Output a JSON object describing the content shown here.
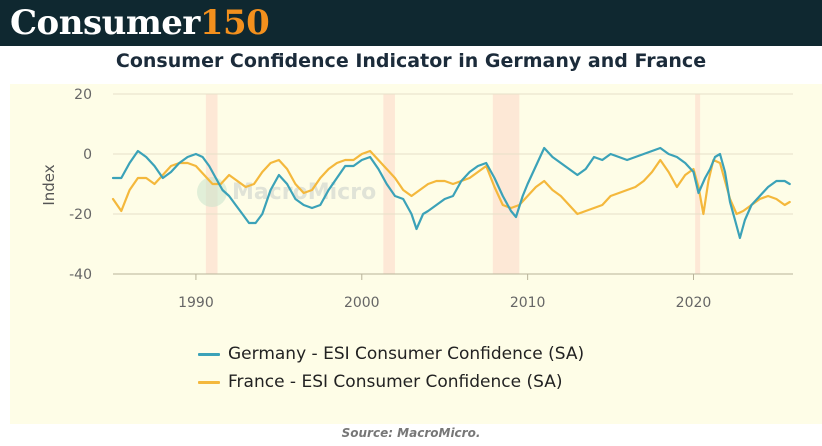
{
  "header": {
    "brand_word": "Consumer",
    "brand_number": "150"
  },
  "source_text": "Source: MacroMicro.",
  "watermark": "MacroMicro",
  "chart_data": {
    "type": "line",
    "title": "Consumer Confidence Indicator in Germany and France",
    "xlabel": "",
    "ylabel": "Index",
    "xlim": [
      1985,
      2026
    ],
    "ylim": [
      -40,
      20
    ],
    "x_ticks": [
      1990,
      2000,
      2010,
      2020
    ],
    "y_ticks": [
      -40,
      -20,
      0,
      20
    ],
    "recessions": [
      [
        1990.6,
        1991.3
      ],
      [
        2001.3,
        2002.0
      ],
      [
        2007.9,
        2009.5
      ],
      [
        2020.1,
        2020.4
      ]
    ],
    "legend_position": "bottom-center",
    "series": [
      {
        "name": "Germany - ESI Consumer Confidence (SA)",
        "color": "#3ba2b8",
        "points": [
          [
            1985.0,
            -8
          ],
          [
            1985.5,
            -8
          ],
          [
            1986.0,
            -3
          ],
          [
            1986.5,
            1
          ],
          [
            1987.0,
            -1
          ],
          [
            1987.5,
            -4
          ],
          [
            1988.0,
            -8
          ],
          [
            1988.5,
            -6
          ],
          [
            1989.0,
            -3
          ],
          [
            1989.5,
            -1
          ],
          [
            1990.0,
            0
          ],
          [
            1990.4,
            -1
          ],
          [
            1990.8,
            -4
          ],
          [
            1991.2,
            -8
          ],
          [
            1991.6,
            -12
          ],
          [
            1992.0,
            -14
          ],
          [
            1992.4,
            -17
          ],
          [
            1992.8,
            -20
          ],
          [
            1993.2,
            -23
          ],
          [
            1993.6,
            -23
          ],
          [
            1994.0,
            -20
          ],
          [
            1994.5,
            -12
          ],
          [
            1995.0,
            -7
          ],
          [
            1995.5,
            -10
          ],
          [
            1996.0,
            -15
          ],
          [
            1996.5,
            -17
          ],
          [
            1997.0,
            -18
          ],
          [
            1997.5,
            -17
          ],
          [
            1998.0,
            -12
          ],
          [
            1998.5,
            -8
          ],
          [
            1999.0,
            -4
          ],
          [
            1999.5,
            -4
          ],
          [
            2000.0,
            -2
          ],
          [
            2000.5,
            -1
          ],
          [
            2001.0,
            -5
          ],
          [
            2001.5,
            -10
          ],
          [
            2002.0,
            -14
          ],
          [
            2002.5,
            -15
          ],
          [
            2003.0,
            -20
          ],
          [
            2003.3,
            -25
          ],
          [
            2003.7,
            -20
          ],
          [
            2004.0,
            -19
          ],
          [
            2004.5,
            -17
          ],
          [
            2005.0,
            -15
          ],
          [
            2005.5,
            -14
          ],
          [
            2006.0,
            -9
          ],
          [
            2006.5,
            -6
          ],
          [
            2007.0,
            -4
          ],
          [
            2007.5,
            -3
          ],
          [
            2008.0,
            -8
          ],
          [
            2008.5,
            -14
          ],
          [
            2009.0,
            -19
          ],
          [
            2009.3,
            -21
          ],
          [
            2009.7,
            -14
          ],
          [
            2010.0,
            -10
          ],
          [
            2010.5,
            -4
          ],
          [
            2011.0,
            2
          ],
          [
            2011.5,
            -1
          ],
          [
            2012.0,
            -3
          ],
          [
            2012.5,
            -5
          ],
          [
            2013.0,
            -7
          ],
          [
            2013.5,
            -5
          ],
          [
            2014.0,
            -1
          ],
          [
            2014.5,
            -2
          ],
          [
            2015.0,
            0
          ],
          [
            2015.5,
            -1
          ],
          [
            2016.0,
            -2
          ],
          [
            2016.5,
            -1
          ],
          [
            2017.0,
            0
          ],
          [
            2017.5,
            1
          ],
          [
            2018.0,
            2
          ],
          [
            2018.5,
            0
          ],
          [
            2019.0,
            -1
          ],
          [
            2019.5,
            -3
          ],
          [
            2020.0,
            -6
          ],
          [
            2020.3,
            -13
          ],
          [
            2020.7,
            -8
          ],
          [
            2021.0,
            -5
          ],
          [
            2021.3,
            -1
          ],
          [
            2021.6,
            0
          ],
          [
            2021.9,
            -6
          ],
          [
            2022.2,
            -16
          ],
          [
            2022.5,
            -22
          ],
          [
            2022.8,
            -28
          ],
          [
            2023.1,
            -22
          ],
          [
            2023.5,
            -17
          ],
          [
            2024.0,
            -14
          ],
          [
            2024.5,
            -11
          ],
          [
            2025.0,
            -9
          ],
          [
            2025.5,
            -9
          ],
          [
            2025.8,
            -10
          ]
        ]
      },
      {
        "name": "France - ESI Consumer Confidence (SA)",
        "color": "#f4b83c",
        "points": [
          [
            1985.0,
            -15
          ],
          [
            1985.5,
            -19
          ],
          [
            1986.0,
            -12
          ],
          [
            1986.5,
            -8
          ],
          [
            1987.0,
            -8
          ],
          [
            1987.5,
            -10
          ],
          [
            1988.0,
            -7
          ],
          [
            1988.5,
            -4
          ],
          [
            1989.0,
            -3
          ],
          [
            1989.5,
            -3
          ],
          [
            1990.0,
            -4
          ],
          [
            1990.5,
            -7
          ],
          [
            1991.0,
            -10
          ],
          [
            1991.5,
            -10
          ],
          [
            1992.0,
            -7
          ],
          [
            1992.5,
            -9
          ],
          [
            1993.0,
            -11
          ],
          [
            1993.5,
            -10
          ],
          [
            1994.0,
            -6
          ],
          [
            1994.5,
            -3
          ],
          [
            1995.0,
            -2
          ],
          [
            1995.5,
            -5
          ],
          [
            1996.0,
            -10
          ],
          [
            1996.5,
            -13
          ],
          [
            1997.0,
            -12
          ],
          [
            1997.5,
            -8
          ],
          [
            1998.0,
            -5
          ],
          [
            1998.5,
            -3
          ],
          [
            1999.0,
            -2
          ],
          [
            1999.5,
            -2
          ],
          [
            2000.0,
            0
          ],
          [
            2000.5,
            1
          ],
          [
            2001.0,
            -2
          ],
          [
            2001.5,
            -5
          ],
          [
            2002.0,
            -8
          ],
          [
            2002.5,
            -12
          ],
          [
            2003.0,
            -14
          ],
          [
            2003.5,
            -12
          ],
          [
            2004.0,
            -10
          ],
          [
            2004.5,
            -9
          ],
          [
            2005.0,
            -9
          ],
          [
            2005.5,
            -10
          ],
          [
            2006.0,
            -9
          ],
          [
            2006.5,
            -8
          ],
          [
            2007.0,
            -6
          ],
          [
            2007.5,
            -4
          ],
          [
            2008.0,
            -11
          ],
          [
            2008.5,
            -17
          ],
          [
            2009.0,
            -18
          ],
          [
            2009.5,
            -17
          ],
          [
            2010.0,
            -14
          ],
          [
            2010.5,
            -11
          ],
          [
            2011.0,
            -9
          ],
          [
            2011.5,
            -12
          ],
          [
            2012.0,
            -14
          ],
          [
            2012.5,
            -17
          ],
          [
            2013.0,
            -20
          ],
          [
            2013.5,
            -19
          ],
          [
            2014.0,
            -18
          ],
          [
            2014.5,
            -17
          ],
          [
            2015.0,
            -14
          ],
          [
            2015.5,
            -13
          ],
          [
            2016.0,
            -12
          ],
          [
            2016.5,
            -11
          ],
          [
            2017.0,
            -9
          ],
          [
            2017.5,
            -6
          ],
          [
            2018.0,
            -2
          ],
          [
            2018.5,
            -6
          ],
          [
            2019.0,
            -11
          ],
          [
            2019.5,
            -7
          ],
          [
            2020.0,
            -5
          ],
          [
            2020.3,
            -11
          ],
          [
            2020.6,
            -20
          ],
          [
            2020.9,
            -9
          ],
          [
            2021.2,
            -2
          ],
          [
            2021.6,
            -3
          ],
          [
            2021.9,
            -9
          ],
          [
            2022.2,
            -15
          ],
          [
            2022.6,
            -20
          ],
          [
            2023.0,
            -19
          ],
          [
            2023.5,
            -17
          ],
          [
            2024.0,
            -15
          ],
          [
            2024.5,
            -14
          ],
          [
            2025.0,
            -15
          ],
          [
            2025.5,
            -17
          ],
          [
            2025.8,
            -16
          ]
        ]
      }
    ]
  }
}
